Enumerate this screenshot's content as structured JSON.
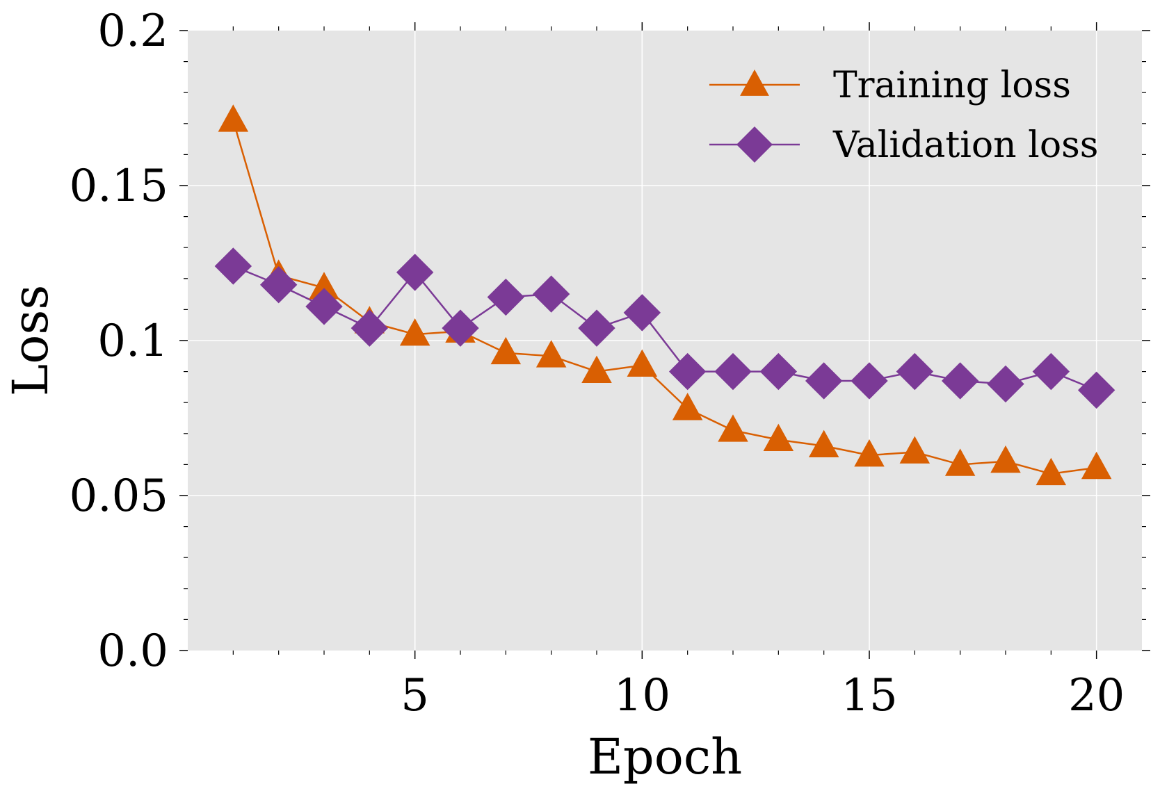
{
  "chart_data": {
    "type": "line",
    "xlabel": "Epoch",
    "ylabel": "Loss",
    "xlim": [
      0,
      21
    ],
    "ylim": [
      0.0,
      0.2
    ],
    "x_ticks": [
      5,
      10,
      15,
      20
    ],
    "x_tick_labels": [
      "5",
      "10",
      "15",
      "20"
    ],
    "y_ticks": [
      0.0,
      0.05,
      0.1,
      0.15,
      0.2
    ],
    "y_tick_labels": [
      "0.0",
      "0.05",
      "0.1",
      "0.15",
      "0.2"
    ],
    "grid": true,
    "legend_position": "top-right",
    "background_color": "#e5e5e5",
    "x": [
      1,
      2,
      3,
      4,
      5,
      6,
      7,
      8,
      9,
      10,
      11,
      12,
      13,
      14,
      15,
      16,
      17,
      18,
      19,
      20
    ],
    "series": [
      {
        "name": "Training loss",
        "color": "#d95f02",
        "marker": "triangle",
        "values": [
          0.171,
          0.121,
          0.117,
          0.106,
          0.102,
          0.103,
          0.096,
          0.095,
          0.09,
          0.092,
          0.078,
          0.071,
          0.068,
          0.066,
          0.063,
          0.064,
          0.06,
          0.061,
          0.057,
          0.059
        ]
      },
      {
        "name": "Validation loss",
        "color": "#7b3a96",
        "marker": "diamond",
        "values": [
          0.124,
          0.118,
          0.111,
          0.104,
          0.122,
          0.104,
          0.114,
          0.115,
          0.104,
          0.109,
          0.09,
          0.09,
          0.09,
          0.087,
          0.087,
          0.09,
          0.087,
          0.086,
          0.09,
          0.084
        ]
      }
    ]
  }
}
